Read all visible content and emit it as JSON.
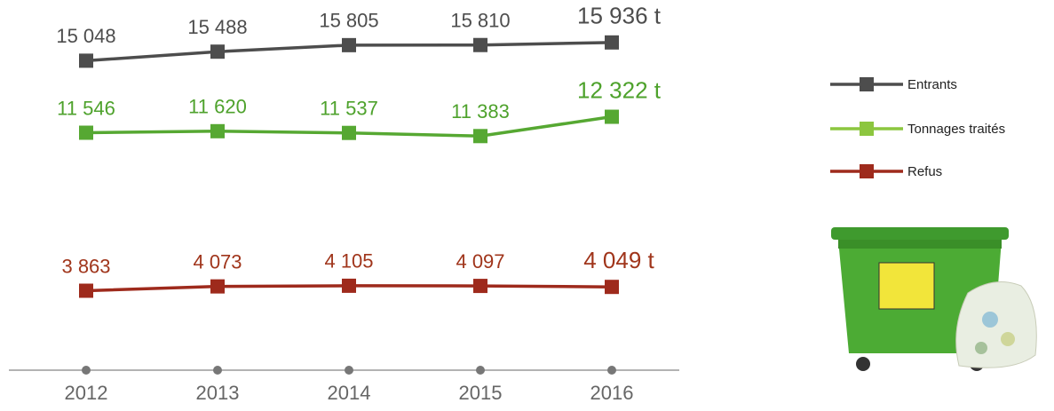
{
  "chart_data": {
    "type": "line",
    "categories": [
      "2012",
      "2013",
      "2014",
      "2015",
      "2016"
    ],
    "series": [
      {
        "name": "Entrants",
        "color": "#4d4d4d",
        "label_color": "#4d4d4d",
        "legend_color": "#4d4d4d",
        "values": [
          15048,
          15488,
          15805,
          15810,
          15936
        ],
        "value_labels": [
          "15 048",
          "15 488",
          "15 805",
          "15 810",
          "15 936 t"
        ]
      },
      {
        "name": "Tonnages traités",
        "color": "#56a832",
        "label_color": "#4ea22c",
        "legend_color": "#8cc63f",
        "values": [
          11546,
          11620,
          11537,
          11383,
          12322
        ],
        "value_labels": [
          "11 546",
          "11 620",
          "11 537",
          "11 383",
          "12 322 t"
        ]
      },
      {
        "name": "Refus",
        "color": "#9e2a1c",
        "label_color": "#a0351b",
        "legend_color": "#9e2a1c",
        "values": [
          3863,
          4073,
          4105,
          4097,
          4049
        ],
        "value_labels": [
          "3 863",
          "4 073",
          "4 105",
          "4 097",
          "4 049 t"
        ]
      }
    ],
    "ylim": [
      0,
      18000
    ],
    "legend": "right"
  }
}
